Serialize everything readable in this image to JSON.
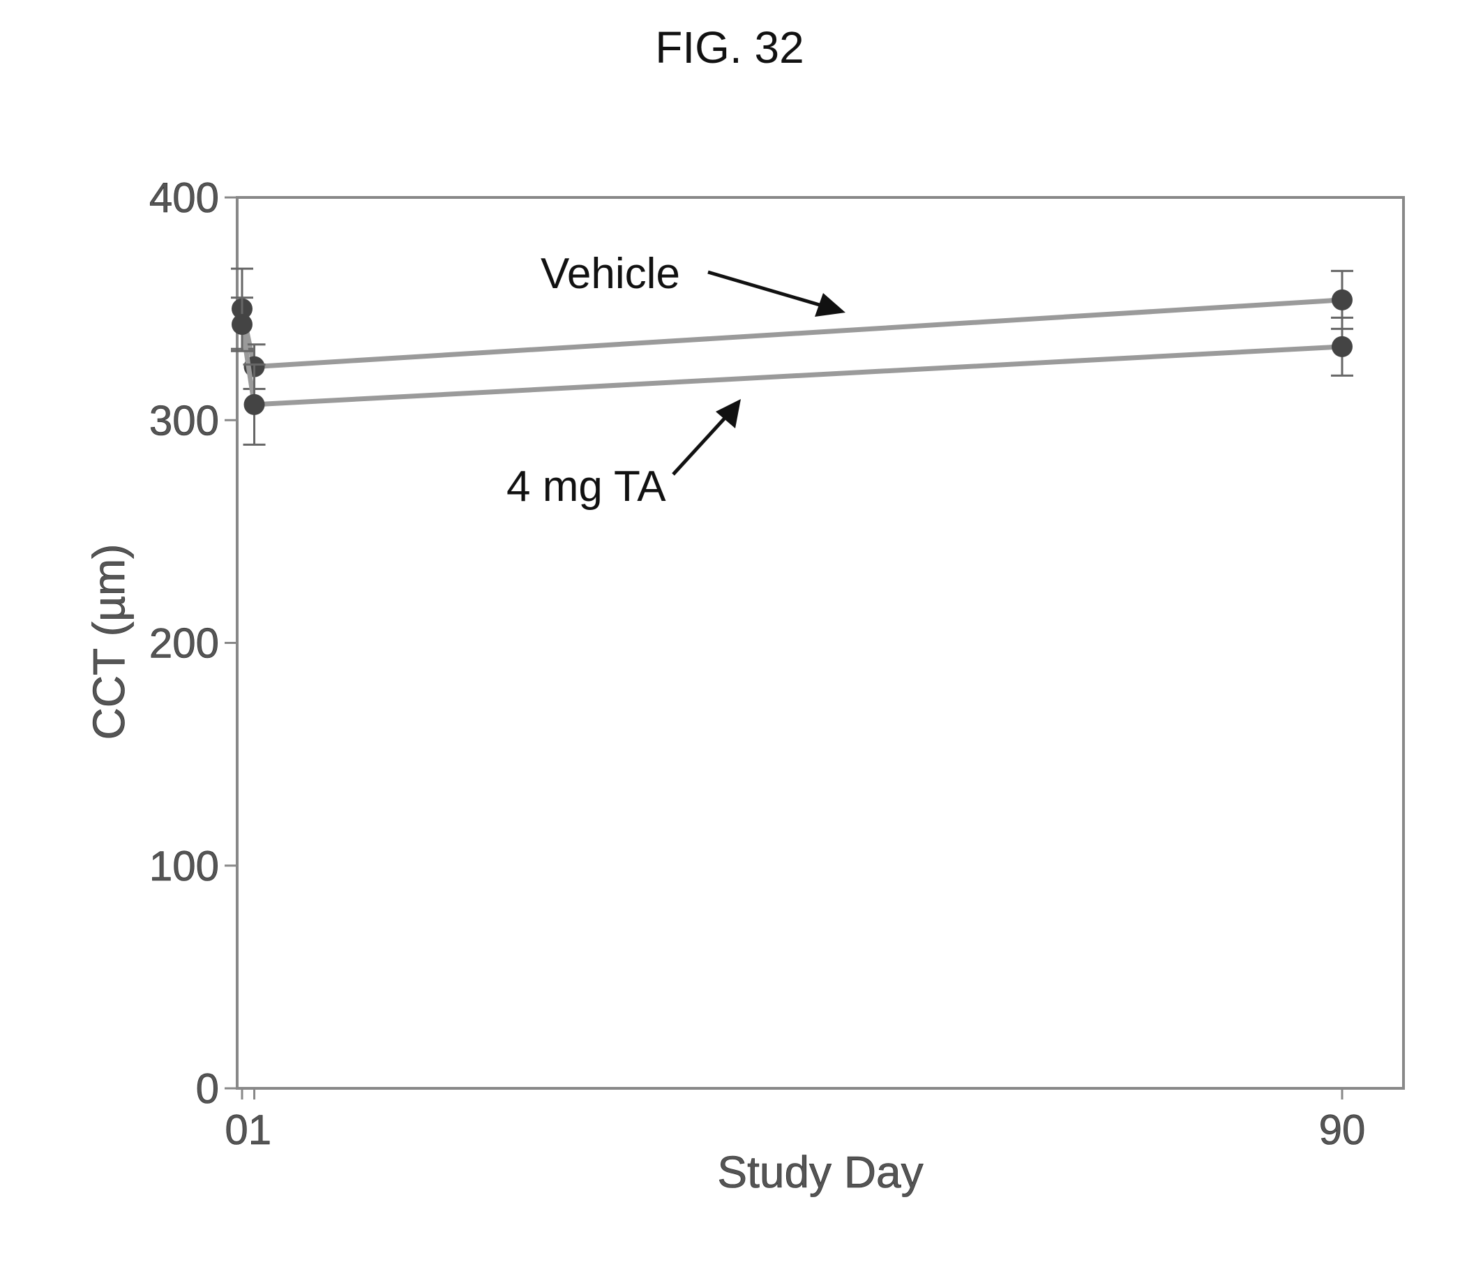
{
  "figure_label": "FIG. 32",
  "chart_data": {
    "type": "line",
    "title": "",
    "xlabel": "Study Day",
    "ylabel": "CCT (µm)",
    "xlim": [
      0,
      90
    ],
    "ylim": [
      0,
      400
    ],
    "yticks": [
      0,
      100,
      200,
      300,
      400
    ],
    "xtick_labels": [
      "01",
      "90"
    ],
    "grid": false,
    "legend": "none",
    "series": [
      {
        "name": "Vehicle",
        "x": [
          0,
          1,
          90
        ],
        "y": [
          350,
          324,
          354
        ],
        "err": [
          18,
          10,
          13
        ],
        "color": "#9a9a9a"
      },
      {
        "name": "4 mg TA",
        "x": [
          0,
          1,
          90
        ],
        "y": [
          343,
          307,
          333
        ],
        "err": [
          12,
          18,
          13
        ],
        "color": "#9a9a9a"
      }
    ],
    "annotations": [
      {
        "text": "Vehicle",
        "points_to_series": 0
      },
      {
        "text": "4 mg TA",
        "points_to_series": 1
      }
    ]
  }
}
